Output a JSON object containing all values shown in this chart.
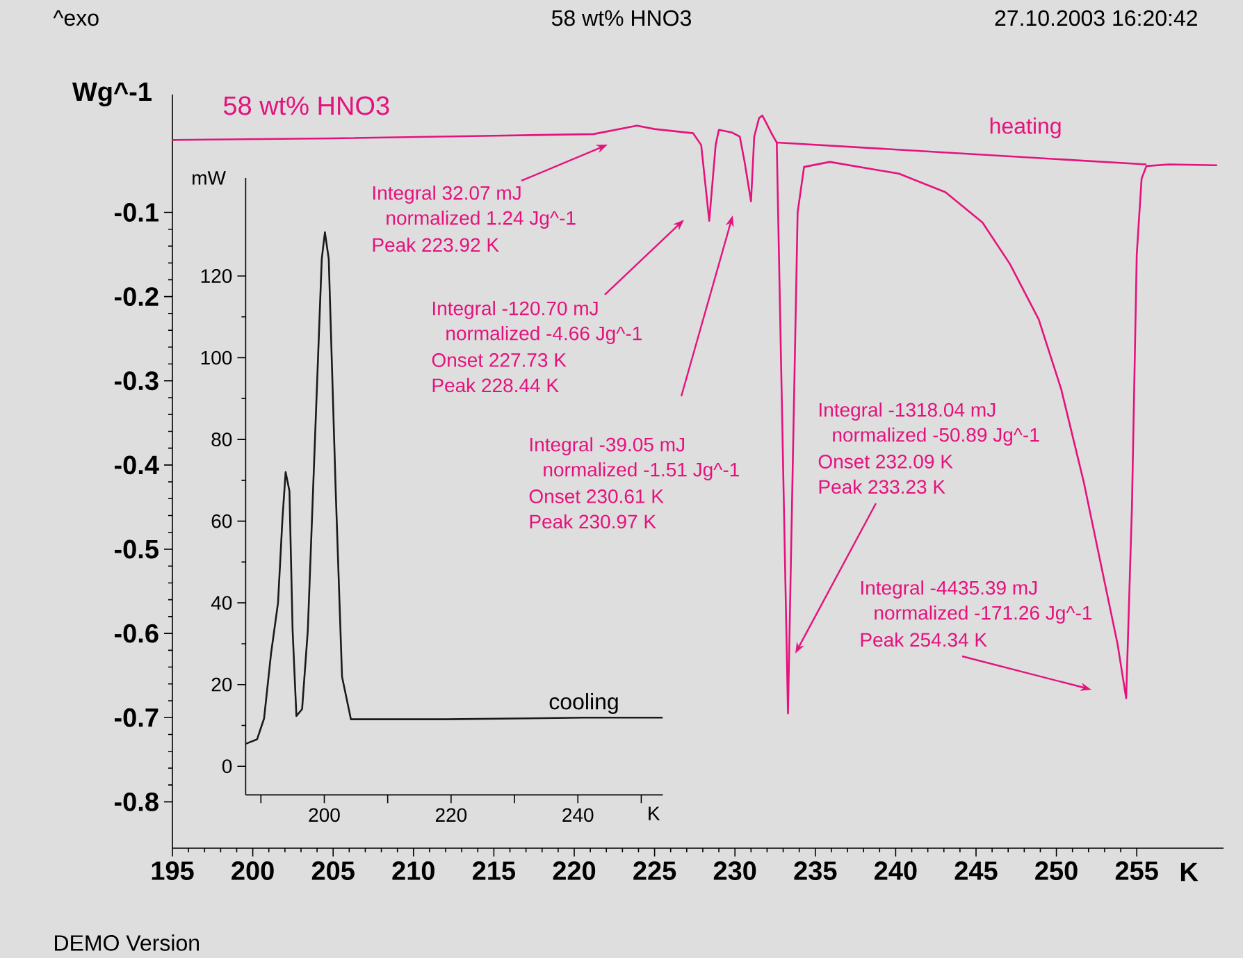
{
  "chart_data": [
    {
      "type": "line",
      "title": "58 wt% HNO3",
      "xlabel": "K",
      "ylabel": "Wg^-1",
      "xlim": [
        195,
        260.4
      ],
      "ylim": [
        -0.855,
        0.04
      ],
      "xticks": [
        195,
        200,
        205,
        210,
        215,
        220,
        225,
        230,
        235,
        240,
        245,
        250,
        255
      ],
      "yticks": [
        -0.8,
        -0.7,
        -0.6,
        -0.5,
        -0.4,
        -0.3,
        -0.2,
        -0.1
      ],
      "series": [
        {
          "name": "58 wt% HNO3",
          "color": "#e5127d",
          "x": [
            195,
            205,
            215,
            221.2,
            223.9,
            225,
            227.4,
            227.9,
            228.4,
            228.8,
            229.0,
            229.8,
            230.3,
            230.6,
            231.0,
            231.2,
            231.5,
            231.7,
            231.9,
            232.3,
            232.6,
            233.3,
            233.9,
            234.3,
            235.9,
            240.2,
            243.1,
            245.4,
            247.1,
            248.9,
            250.3,
            251.7,
            252.9,
            253.8,
            254.34,
            254.7,
            255.0,
            255.3,
            255.6,
            257,
            260
          ],
          "values": [
            -0.014,
            -0.012,
            -0.009,
            -0.007,
            0.003,
            -0.001,
            -0.006,
            -0.02,
            -0.11,
            -0.02,
            -0.002,
            -0.005,
            -0.01,
            -0.04,
            -0.087,
            -0.01,
            0.012,
            0.015,
            0.008,
            -0.007,
            -0.017,
            -0.695,
            -0.1,
            -0.046,
            -0.04,
            -0.054,
            -0.076,
            -0.112,
            -0.161,
            -0.227,
            -0.31,
            -0.42,
            -0.53,
            -0.612,
            -0.677,
            -0.45,
            -0.15,
            -0.06,
            -0.045,
            -0.043,
            -0.044
          ]
        },
        {
          "color": "#e5127d",
          "x": [
            232.6,
            255.6
          ],
          "values": [
            -0.017,
            -0.043
          ]
        }
      ],
      "annotations": [
        "^exo",
        "27.10.2003 16:20:42",
        "DEMO Version",
        "heating",
        "Integral 32.07 mJ",
        "normalized 1.24 Jg^-1",
        "Peak 223.92 K",
        "Integral -120.70 mJ",
        "normalized -4.66 Jg^-1",
        "Onset 227.73 K",
        "Peak 228.44 K",
        "Integral -39.05 mJ",
        "normalized -1.51 Jg^-1",
        "Onset 230.61 K",
        "Peak 230.97 K",
        "Integral -1318.04 mJ",
        "normalized -50.89 Jg^-1",
        "Onset 232.09 K",
        "Peak 233.23 K",
        "Integral -4435.39 mJ",
        "normalized -171.26 Jg^-1",
        "Peak 254.34 K"
      ]
    },
    {
      "type": "line",
      "xlabel": "K",
      "ylabel": "mW",
      "xlim": [
        187.6,
        253.4
      ],
      "ylim": [
        -7,
        144
      ],
      "xticks": [
        {
          "value": 190,
          "label": null
        },
        200,
        {
          "value": 210,
          "label": null
        },
        220,
        {
          "value": 230,
          "label": null
        },
        240,
        {
          "value": 250,
          "label": null
        }
      ],
      "yticks": [
        0,
        20,
        40,
        60,
        80,
        100,
        120
      ],
      "series": [
        {
          "color": "#1a1a1a",
          "x": [
            187.6,
            189.4,
            190.5,
            191.6,
            192.7,
            193.4,
            193.9,
            194.5,
            195.0,
            195.6,
            196.5,
            197.4,
            198.5,
            199.6,
            200.1,
            200.7,
            201.8,
            202.8,
            204.2,
            219.0,
            240.9,
            253.4
          ],
          "values": [
            5.5,
            6.6,
            11.7,
            27.6,
            40,
            60.6,
            72,
            67.4,
            33.3,
            12.3,
            14,
            33.3,
            78.8,
            124.2,
            130.7,
            124.2,
            67.4,
            21.9,
            11.5,
            11.5,
            11.9,
            11.9
          ]
        }
      ],
      "annotations": [
        "cooling"
      ]
    }
  ]
}
